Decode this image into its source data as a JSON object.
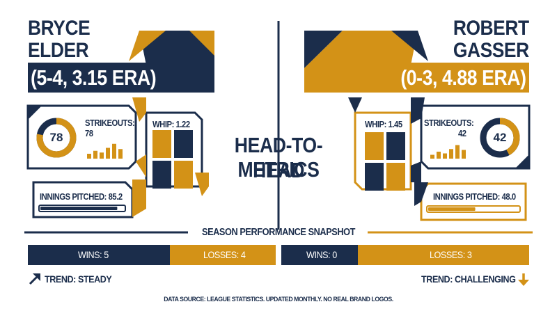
{
  "colors": {
    "navy": "#1b2d4b",
    "gold": "#d39217",
    "gold_light": "#e9c98a"
  },
  "header": {
    "center_title_line1": "HEAD-TO-HEAD",
    "center_title_line2": "METRICS"
  },
  "left_player": {
    "first_name": "BRYCE",
    "last_name": "ELDER",
    "record": "(5-4, 3.15 ERA)",
    "strikeouts_label": "STRIKEOUTS:",
    "strikeouts_value": "78",
    "strikeouts_ring_value": "78",
    "strikeouts_ring_fraction": 0.78,
    "spark_bars": [
      0.28,
      0.45,
      0.35,
      0.62,
      0.85,
      0.55
    ],
    "whip_label": "WHIP: 1.22",
    "whip": 1.22,
    "innings_label": "INNINGS PITCHED: 85.2",
    "innings": 85.2,
    "innings_bar_fraction": 0.92,
    "wins_label": "WINS: 5",
    "losses_label": "LOSSES: 4",
    "trend_label": "TREND: STEADY",
    "trend_icon": "arrow-up-right-icon"
  },
  "right_player": {
    "first_name": "ROBERT",
    "last_name": "GASSER",
    "record": "(0-3, 4.88 ERA)",
    "strikeouts_label": "STRIKEOUTS:",
    "strikeouts_value": "42",
    "strikeouts_ring_value": "42",
    "strikeouts_ring_fraction": 0.42,
    "spark_bars": [
      0.22,
      0.4,
      0.3,
      0.55,
      0.78,
      0.5
    ],
    "whip_label": "WHIP: 1.45",
    "whip": 1.45,
    "innings_label": "INNINGS PITCHED: 48.0",
    "innings": 48.0,
    "innings_bar_fraction": 0.52,
    "wins_label": "WINS: 0",
    "losses_label": "LOSSES: 3",
    "trend_label": "TREND: CHALLENGING",
    "trend_icon": "arrow-down-icon"
  },
  "snapshot_title": "SEASON PERFORMANCE SNAPSHOT",
  "footer_note": "DATA SOURCE: LEAGUE STATISTICS. UPDATED MONTHLY. NO REAL BRAND LOGOS."
}
